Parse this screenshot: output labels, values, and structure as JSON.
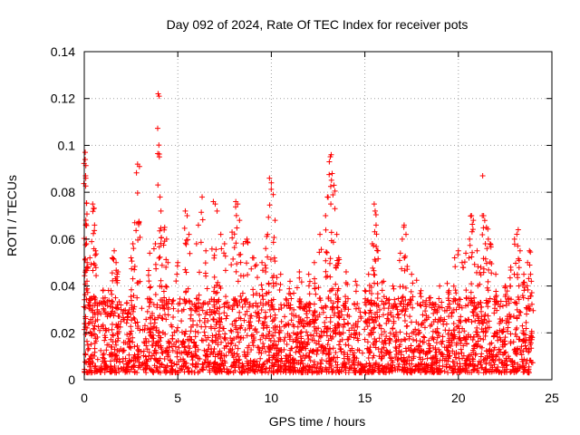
{
  "chart_data": {
    "type": "scatter",
    "title": "Day 092 of 2024, Rate Of TEC Index for receiver pots",
    "xlabel": "GPS time / hours",
    "ylabel": "ROTI / TECUs",
    "xlim": [
      0,
      25
    ],
    "ylim": [
      0,
      0.14
    ],
    "x_ticks": [
      0,
      5,
      10,
      15,
      20,
      25
    ],
    "y_ticks": [
      0,
      0.02,
      0.04,
      0.06,
      0.08,
      0.1,
      0.12,
      0.14
    ],
    "x_tick_labels": [
      "0",
      "5",
      "10",
      "15",
      "20",
      "25"
    ],
    "y_tick_labels": [
      "0",
      "0.02",
      "0.04",
      "0.06",
      "0.08",
      "0.1",
      "0.12",
      "0.14"
    ],
    "grid": true,
    "marker": "+",
    "color": "#ff0000",
    "series": [
      {
        "name": "ROTI",
        "points": [
          [
            0.05,
            0.097
          ],
          [
            0.05,
            0.094
          ],
          [
            0.07,
            0.087
          ],
          [
            0.08,
            0.086
          ],
          [
            0.1,
            0.06
          ],
          [
            0.12,
            0.058
          ],
          [
            0.15,
            0.05
          ],
          [
            0.3,
            0.052
          ],
          [
            0.45,
            0.075
          ],
          [
            0.5,
            0.073
          ],
          [
            0.55,
            0.066
          ],
          [
            0.6,
            0.055
          ],
          [
            1.0,
            0.038
          ],
          [
            1.5,
            0.052
          ],
          [
            1.6,
            0.055
          ],
          [
            1.7,
            0.05
          ],
          [
            1.8,
            0.046
          ],
          [
            2.5,
            0.052
          ],
          [
            2.6,
            0.058
          ],
          [
            2.7,
            0.067
          ],
          [
            2.85,
            0.092
          ],
          [
            2.95,
            0.091
          ],
          [
            3.5,
            0.054
          ],
          [
            3.8,
            0.058
          ],
          [
            3.95,
            0.122
          ],
          [
            4.0,
            0.121
          ],
          [
            4.05,
            0.078
          ],
          [
            4.1,
            0.072
          ],
          [
            4.3,
            0.065
          ],
          [
            4.4,
            0.06
          ],
          [
            5.0,
            0.05
          ],
          [
            5.4,
            0.072
          ],
          [
            5.5,
            0.07
          ],
          [
            5.6,
            0.062
          ],
          [
            6.0,
            0.058
          ],
          [
            6.1,
            0.066
          ],
          [
            6.3,
            0.078
          ],
          [
            6.5,
            0.055
          ],
          [
            6.9,
            0.076
          ],
          [
            7.0,
            0.075
          ],
          [
            7.1,
            0.072
          ],
          [
            7.3,
            0.062
          ],
          [
            7.5,
            0.058
          ],
          [
            7.9,
            0.063
          ],
          [
            8.1,
            0.076
          ],
          [
            8.2,
            0.075
          ],
          [
            8.3,
            0.068
          ],
          [
            8.5,
            0.058
          ],
          [
            8.7,
            0.06
          ],
          [
            9.0,
            0.052
          ],
          [
            9.2,
            0.049
          ],
          [
            9.5,
            0.05
          ],
          [
            9.7,
            0.056
          ],
          [
            9.8,
            0.062
          ],
          [
            9.9,
            0.086
          ],
          [
            10.0,
            0.084
          ],
          [
            10.1,
            0.079
          ],
          [
            10.2,
            0.068
          ],
          [
            10.5,
            0.045
          ],
          [
            11.0,
            0.042
          ],
          [
            11.5,
            0.046
          ],
          [
            12.0,
            0.045
          ],
          [
            12.3,
            0.05
          ],
          [
            12.6,
            0.062
          ],
          [
            12.9,
            0.07
          ],
          [
            13.0,
            0.078
          ],
          [
            13.1,
            0.093
          ],
          [
            13.2,
            0.096
          ],
          [
            13.25,
            0.088
          ],
          [
            13.35,
            0.083
          ],
          [
            13.4,
            0.073
          ],
          [
            13.5,
            0.062
          ],
          [
            13.6,
            0.052
          ],
          [
            14.0,
            0.046
          ],
          [
            14.5,
            0.042
          ],
          [
            15.0,
            0.038
          ],
          [
            15.2,
            0.045
          ],
          [
            15.4,
            0.058
          ],
          [
            15.5,
            0.075
          ],
          [
            15.55,
            0.072
          ],
          [
            15.6,
            0.066
          ],
          [
            15.7,
            0.055
          ],
          [
            16.0,
            0.042
          ],
          [
            16.5,
            0.04
          ],
          [
            16.9,
            0.054
          ],
          [
            17.0,
            0.06
          ],
          [
            17.1,
            0.066
          ],
          [
            17.2,
            0.062
          ],
          [
            17.5,
            0.045
          ],
          [
            18.0,
            0.038
          ],
          [
            18.5,
            0.035
          ],
          [
            19.0,
            0.04
          ],
          [
            19.5,
            0.038
          ],
          [
            19.8,
            0.052
          ],
          [
            20.0,
            0.055
          ],
          [
            20.2,
            0.05
          ],
          [
            20.4,
            0.054
          ],
          [
            20.6,
            0.06
          ],
          [
            20.7,
            0.07
          ],
          [
            20.8,
            0.068
          ],
          [
            21.0,
            0.055
          ],
          [
            21.2,
            0.048
          ],
          [
            21.3,
            0.087
          ],
          [
            21.35,
            0.07
          ],
          [
            21.5,
            0.065
          ],
          [
            21.6,
            0.06
          ],
          [
            21.7,
            0.058
          ],
          [
            22.0,
            0.045
          ],
          [
            22.5,
            0.04
          ],
          [
            22.8,
            0.048
          ],
          [
            23.0,
            0.06
          ],
          [
            23.2,
            0.064
          ],
          [
            23.3,
            0.055
          ],
          [
            23.5,
            0.045
          ],
          [
            23.7,
            0.05
          ],
          [
            23.8,
            0.055
          ],
          [
            23.9,
            0.042
          ]
        ]
      }
    ],
    "noise_band": {
      "x_range": [
        0,
        24
      ],
      "y_range": [
        0.003,
        0.035
      ],
      "count": 2600
    }
  }
}
